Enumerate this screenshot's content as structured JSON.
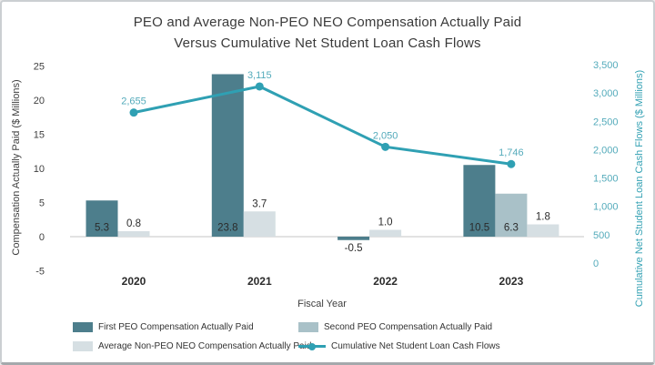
{
  "chart_data": {
    "type": "bar+line",
    "title_line1": "PEO and Average Non-PEO NEO Compensation Actually Paid",
    "title_line2": "Versus Cumulative Net Student Loan Cash Flows",
    "categories": [
      "2020",
      "2021",
      "2022",
      "2023"
    ],
    "x_axis_label": "Fiscal Year",
    "left_axis": {
      "label": "Compensation Actually Paid ($ Millions)",
      "range": [
        -5,
        25
      ],
      "ticks": [
        {
          "v": 25,
          "t": "25"
        },
        {
          "v": 20,
          "t": "20"
        },
        {
          "v": 15,
          "t": "15"
        },
        {
          "v": 10,
          "t": "10"
        },
        {
          "v": 5,
          "t": "5"
        },
        {
          "v": 0,
          "t": "0"
        },
        {
          "v": -5,
          "t": "-5"
        }
      ]
    },
    "right_axis": {
      "label": "Cumulative Net Student Loan Cash Flows ($ Millions)",
      "range": [
        0,
        3500
      ],
      "ticks": [
        {
          "v": 3500,
          "t": "3,500"
        },
        {
          "v": 3000,
          "t": "3,000"
        },
        {
          "v": 2500,
          "t": "2,500"
        },
        {
          "v": 2000,
          "t": "2,000"
        },
        {
          "v": 1500,
          "t": "1,500"
        },
        {
          "v": 1000,
          "t": "1,000"
        },
        {
          "v": 500,
          "t": "500"
        },
        {
          "v": 0,
          "t": "0"
        }
      ]
    },
    "series": [
      {
        "name": "First PEO Compensation Actually Paid",
        "type": "bar",
        "color": "#4d7e8c",
        "label_placement": "inside",
        "values": [
          5.3,
          23.8,
          -0.5,
          10.5
        ],
        "labels": [
          "5.3",
          "23.8",
          "-0.5",
          "10.5"
        ]
      },
      {
        "name": "Second PEO Compensation Actually Paid",
        "type": "bar",
        "color": "#a9c1c8",
        "label_placement": "inside",
        "values": [
          null,
          null,
          null,
          6.3
        ],
        "labels": [
          null,
          null,
          null,
          "6.3"
        ]
      },
      {
        "name": "Average Non-PEO NEO Compensation Actually Paid",
        "type": "bar",
        "color": "#d6dfe3",
        "label_placement": "above",
        "values": [
          0.8,
          3.7,
          1.0,
          1.8
        ],
        "labels": [
          "0.8",
          "3.7",
          "1.0",
          "1.8"
        ]
      },
      {
        "name": "Cumulative Net Student Loan Cash Flows",
        "type": "line",
        "color": "#2fa0b3",
        "values": [
          2655,
          3115,
          2050,
          1746
        ],
        "labels": [
          "2,655",
          "3,115",
          "2,050",
          "1,746"
        ]
      }
    ],
    "legend_position": "bottom",
    "grid": "off"
  }
}
